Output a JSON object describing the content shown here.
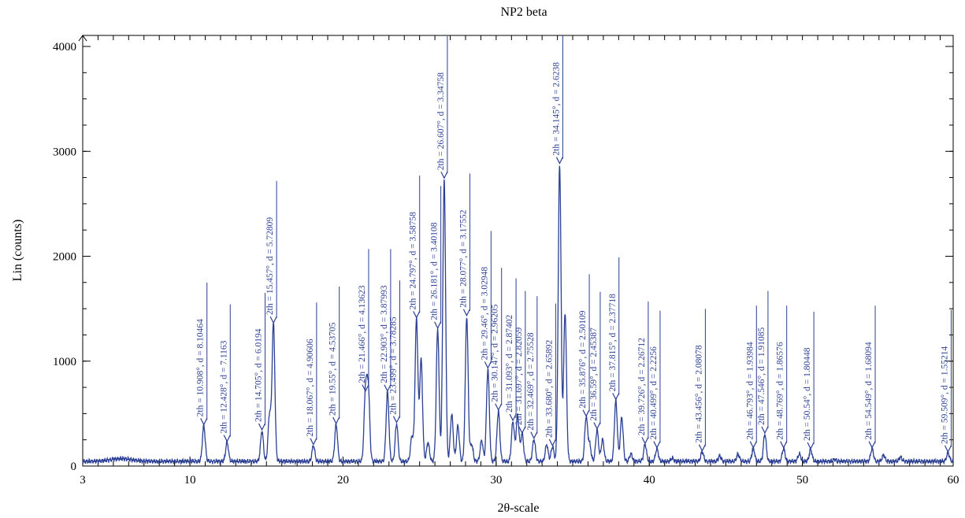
{
  "chart_data": {
    "type": "line",
    "title": "NP2 beta",
    "xlabel": "2θ-scale",
    "ylabel": "Lin (counts)",
    "xlim": [
      3,
      60
    ],
    "ylim": [
      0,
      4000
    ],
    "x_ticks": [
      3,
      10,
      20,
      30,
      40,
      50,
      60
    ],
    "y_ticks": [
      0,
      1000,
      2000,
      3000,
      4000
    ],
    "line_color": "#2b3f94",
    "grid": false,
    "peaks": [
      {
        "x": 10.908,
        "y": 380,
        "label": "2th = 10.908°, d = 8.10464"
      },
      {
        "x": 12.428,
        "y": 220,
        "label": "2th = 12.428°, d = 7.1163"
      },
      {
        "x": 14.705,
        "y": 330,
        "label": "2th = 14.705°, d = 6.0194"
      },
      {
        "x": 15.457,
        "y": 1350,
        "label": "2th = 15.457°, d = 5.72809"
      },
      {
        "x": 18.067,
        "y": 190,
        "label": "2th = 18.067°, d = 4.90606"
      },
      {
        "x": 19.55,
        "y": 390,
        "label": "2th = 19.55°, d = 4.53705"
      },
      {
        "x": 21.466,
        "y": 700,
        "label": "2th = 21.466°, d = 4.13623"
      },
      {
        "x": 22.903,
        "y": 700,
        "label": "2th = 22.903°, d = 3.87993"
      },
      {
        "x": 23.499,
        "y": 400,
        "label": "2th = 23.499°, d = 3.78285"
      },
      {
        "x": 24.797,
        "y": 1400,
        "label": "2th = 24.797°, d = 3.58758"
      },
      {
        "x": 26.181,
        "y": 1300,
        "label": "2th = 26.181°, d = 3.40108"
      },
      {
        "x": 26.607,
        "y": 2730,
        "label": "2th = 26.607°, d = 3.34758"
      },
      {
        "x": 28.077,
        "y": 1420,
        "label": "2th = 28.077°, d = 3.17552"
      },
      {
        "x": 29.46,
        "y": 920,
        "label": "2th = 29.46°, d = 3.02948"
      },
      {
        "x": 30.147,
        "y": 520,
        "label": "2th = 30.147°, d = 2.96205"
      },
      {
        "x": 31.093,
        "y": 420,
        "label": "2th = 31.093°, d = 2.87402"
      },
      {
        "x": 31.697,
        "y": 300,
        "label": "2th = 31.697°, d = 2.82059"
      },
      {
        "x": 32.469,
        "y": 250,
        "label": "2th = 32.469°, d = 2.75528"
      },
      {
        "x": 33.68,
        "y": 180,
        "label": "2th = 33.680°, d = 2.65892"
      },
      {
        "x": 34.145,
        "y": 2870,
        "label": "2th = 34.145°, d = 2.6238"
      },
      {
        "x": 35.876,
        "y": 460,
        "label": "2th = 35.876°, d = 2.50109"
      },
      {
        "x": 36.59,
        "y": 340,
        "label": "2th = 36.59°, d = 2.45387"
      },
      {
        "x": 37.815,
        "y": 620,
        "label": "2th = 37.815°, d = 2.37718"
      },
      {
        "x": 39.726,
        "y": 200,
        "label": "2th = 39.726°, d = 2.26712"
      },
      {
        "x": 40.499,
        "y": 160,
        "label": "2th = 40.499°, d = 2.2256"
      },
      {
        "x": 43.456,
        "y": 130,
        "label": "2th = 43.456°, d = 2.08078"
      },
      {
        "x": 46.793,
        "y": 160,
        "label": "2th = 46.793°, d = 1.93984"
      },
      {
        "x": 47.546,
        "y": 300,
        "label": "2th = 47.546°, d = 1.91085"
      },
      {
        "x": 48.769,
        "y": 160,
        "label": "2th = 48.769°, d = 1.86576"
      },
      {
        "x": 50.54,
        "y": 150,
        "label": "2th = 50.54°, d = 1.80448"
      },
      {
        "x": 54.549,
        "y": 160,
        "label": "2th = 54.549°, d = 1.68094"
      },
      {
        "x": 59.509,
        "y": 120,
        "label": "2th = 59.509°, d = 1.55214"
      }
    ],
    "extra_peaks": [
      {
        "x": 15.2,
        "y": 490
      },
      {
        "x": 21.65,
        "y": 720
      },
      {
        "x": 24.5,
        "y": 280
      },
      {
        "x": 25.1,
        "y": 1010
      },
      {
        "x": 25.55,
        "y": 220
      },
      {
        "x": 27.1,
        "y": 490
      },
      {
        "x": 27.5,
        "y": 380
      },
      {
        "x": 28.4,
        "y": 200
      },
      {
        "x": 29.05,
        "y": 240
      },
      {
        "x": 31.4,
        "y": 480
      },
      {
        "x": 33.3,
        "y": 200
      },
      {
        "x": 34.5,
        "y": 1460
      },
      {
        "x": 36.1,
        "y": 200
      },
      {
        "x": 36.95,
        "y": 250
      },
      {
        "x": 38.2,
        "y": 460
      },
      {
        "x": 38.8,
        "y": 110
      },
      {
        "x": 41.5,
        "y": 70
      },
      {
        "x": 44.6,
        "y": 90
      },
      {
        "x": 45.8,
        "y": 110
      },
      {
        "x": 49.8,
        "y": 110
      },
      {
        "x": 52.1,
        "y": 60
      },
      {
        "x": 55.3,
        "y": 100
      },
      {
        "x": 56.4,
        "y": 80
      }
    ]
  }
}
